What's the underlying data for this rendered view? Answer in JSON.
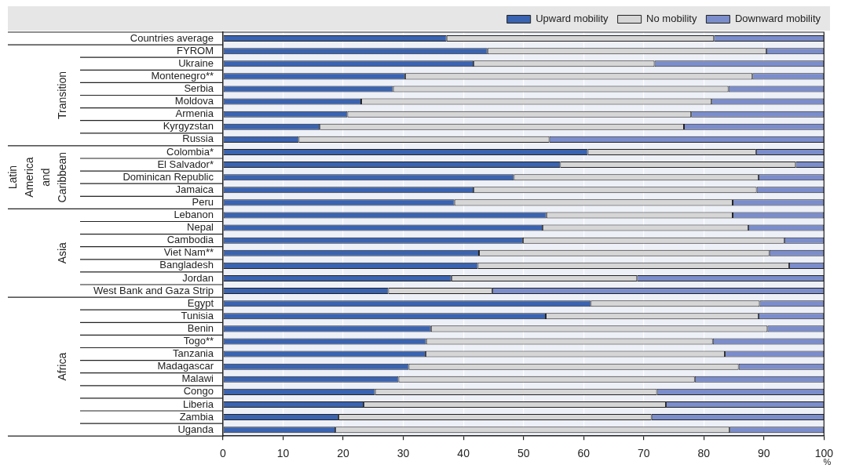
{
  "chart_data": {
    "type": "bar",
    "orientation": "horizontal",
    "stacked": true,
    "xlabel": "%",
    "categories": [
      "Countries average",
      "FYROM",
      "Ukraine",
      "Montenegro**",
      "Serbia",
      "Moldova",
      "Armenia",
      "Kyrgyzstan",
      "Russia",
      "Colombia*",
      "El Salvador*",
      "Dominican Republic",
      "Jamaica",
      "Peru",
      "Lebanon",
      "Nepal",
      "Cambodia",
      "Viet Nam**",
      "Bangladesh",
      "Jordan",
      "West Bank and Gaza Strip",
      "Egypt",
      "Tunisia",
      "Benin",
      "Togo**",
      "Tanzania",
      "Madagascar",
      "Malawi",
      "Congo",
      "Liberia",
      "Zambia",
      "Uganda"
    ],
    "series": [
      {
        "name": "Upward mobility",
        "color": "#3a63b0",
        "values": [
          37.2,
          44,
          41.7,
          30.3,
          28.3,
          23,
          20.7,
          16.1,
          12.6,
          60.7,
          56.1,
          48.4,
          41.7,
          38.5,
          53.8,
          53.2,
          49.9,
          42.6,
          42.4,
          38,
          27.5,
          61.2,
          53.7,
          34.6,
          33.8,
          33.7,
          30.9,
          29.2,
          25.3,
          23.4,
          19.2,
          18.7
        ]
      },
      {
        "name": "No mobility",
        "color": "#d6d6d6",
        "values": [
          44.5,
          46.4,
          30.1,
          57.8,
          55.8,
          58.3,
          57.2,
          60.6,
          41.7,
          28,
          39.2,
          40.7,
          47.1,
          46.3,
          31,
          34.2,
          43.5,
          48.3,
          51.8,
          30.9,
          17.3,
          28.1,
          35.4,
          56,
          47.7,
          49.8,
          54.9,
          49.3,
          46.9,
          50.3,
          52.1,
          65.6
        ]
      },
      {
        "name": "Downward mobility",
        "color": "#7b8dcb",
        "values": [
          18.3,
          9.6,
          28.2,
          11.9,
          15.9,
          18.7,
          22.1,
          23.3,
          45.7,
          11.3,
          4.7,
          10.9,
          11.2,
          15.2,
          15.2,
          12.6,
          6.6,
          9.1,
          5.8,
          31.1,
          55.2,
          10.7,
          10.9,
          9.4,
          18.5,
          16.5,
          14.2,
          21.5,
          27.8,
          26.3,
          28.7,
          15.7
        ]
      }
    ],
    "xlim": [
      0,
      100
    ],
    "xticks": [
      0,
      10,
      20,
      30,
      40,
      50,
      60,
      70,
      80,
      90,
      100
    ],
    "grid": "x",
    "legend": "top right",
    "annotations": [
      "Transition",
      "Latin America and Caribbean",
      "Asia",
      "Africa"
    ]
  }
}
